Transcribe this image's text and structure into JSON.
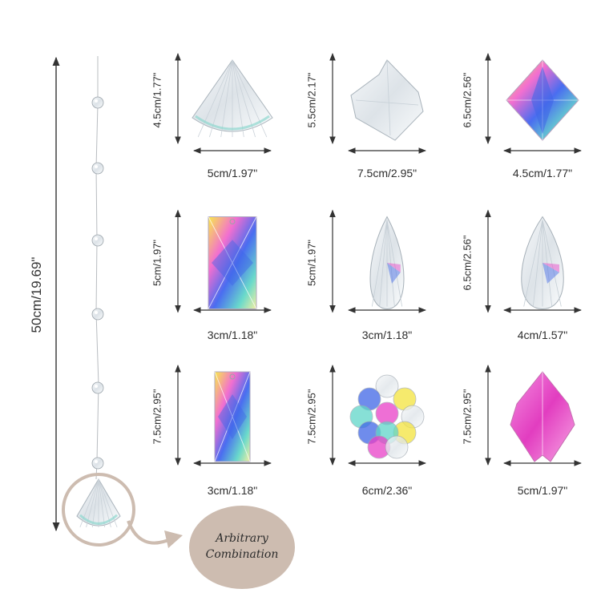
{
  "total_length_label": "50cm/19.69\"",
  "bubble": {
    "line1": "Arbitrary",
    "line2": "Combination"
  },
  "crystals": [
    {
      "shape": "cone",
      "height_label": "4.5cm/1.77\"",
      "width_label": "5cm/1.97\""
    },
    {
      "shape": "clear-maple-leaf",
      "height_label": "5.5cm/2.17\"",
      "width_label": "7.5cm/2.95\""
    },
    {
      "shape": "diamond",
      "height_label": "6.5cm/2.56\"",
      "width_label": "4.5cm/1.77\""
    },
    {
      "shape": "rectangle",
      "height_label": "5cm/1.97\"",
      "width_label": "3cm/1.18\""
    },
    {
      "shape": "teardrop-small",
      "height_label": "5cm/1.97\"",
      "width_label": "3cm/1.18\""
    },
    {
      "shape": "teardrop-large",
      "height_label": "6.5cm/2.56\"",
      "width_label": "4cm/1.57\""
    },
    {
      "shape": "tall-rectangle",
      "height_label": "7.5cm/2.95\"",
      "width_label": "3cm/1.18\""
    },
    {
      "shape": "grape-cluster",
      "height_label": "7.5cm/2.95\"",
      "width_label": "6cm/2.36\""
    },
    {
      "shape": "pink-maple-leaf",
      "height_label": "7.5cm/2.95\"",
      "width_label": "5cm/1.97\""
    }
  ],
  "colors": {
    "arrow": "#333333",
    "beige": "#cdbcb0",
    "pink": "#e93fc7",
    "blue": "#3f66e6",
    "yellow": "#f3e33d",
    "teal": "#5fd6c9"
  }
}
